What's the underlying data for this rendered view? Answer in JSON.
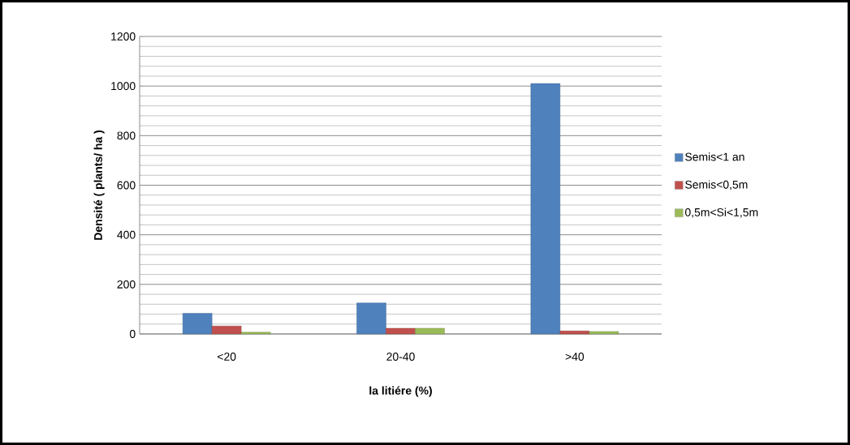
{
  "chart_data": {
    "type": "bar",
    "xlabel": "la litiére (%)",
    "ylabel": "Densité ( plants/ ha )",
    "categories": [
      "<20",
      "20-40",
      ">40"
    ],
    "series": [
      {
        "name": "Semis<1 an",
        "color": "#4f81bd",
        "values": [
          83,
          125,
          1010
        ]
      },
      {
        "name": "Semis<0,5m",
        "color": "#c0504d",
        "values": [
          32,
          23,
          12
        ]
      },
      {
        "name": "0,5m<Si<1,5m",
        "color": "#9bbb59",
        "values": [
          7,
          23,
          10
        ]
      }
    ],
    "ylim": [
      0,
      1200
    ],
    "yticks": [
      0,
      200,
      400,
      600,
      800,
      1000,
      1200
    ],
    "grid": "y",
    "legend": "right"
  }
}
